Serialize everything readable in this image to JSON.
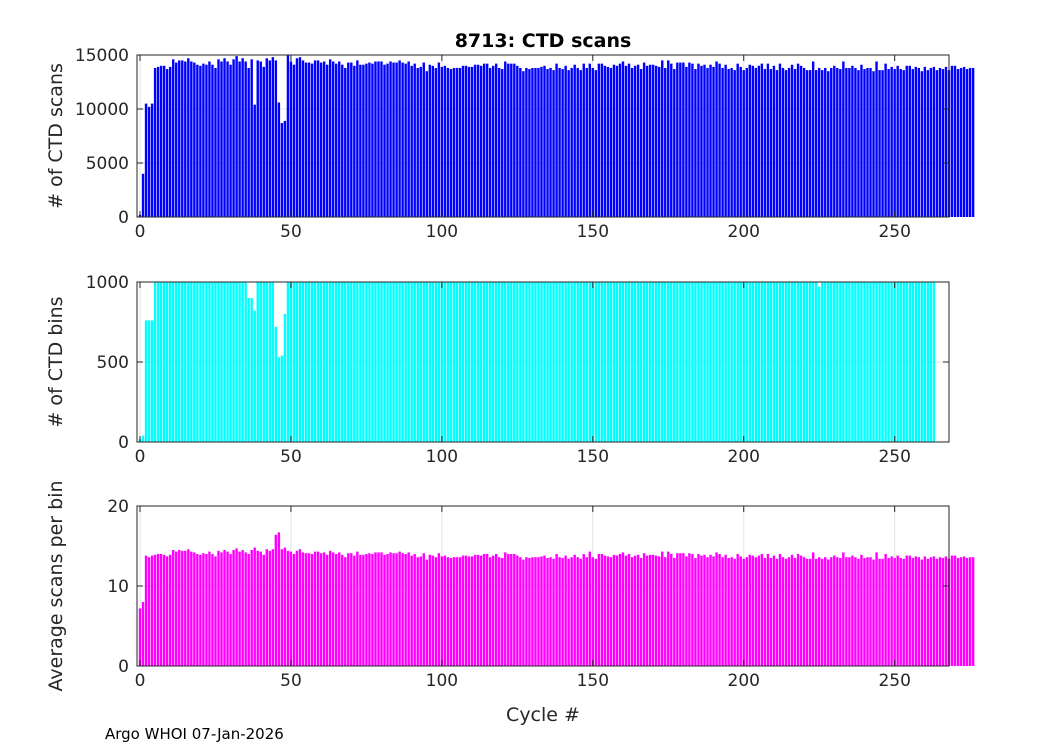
{
  "chart_data": [
    {
      "type": "bar",
      "panel": "top",
      "title": "8713: CTD scans",
      "xlabel": "",
      "ylabel": "# of CTD scans",
      "xlim": [
        -1,
        268
      ],
      "ylim": [
        0,
        15000
      ],
      "xticks": [
        0,
        50,
        100,
        150,
        200,
        250
      ],
      "yticks": [
        0,
        5000,
        10000,
        15000
      ],
      "color": "#0000ff",
      "grid": true,
      "x_start": 0,
      "values": [
        200,
        4000,
        10500,
        10200,
        10500,
        13800,
        13900,
        14000,
        14000,
        13700,
        13900,
        14600,
        14300,
        14500,
        14500,
        14400,
        14700,
        14400,
        14300,
        14100,
        14000,
        14200,
        14100,
        14400,
        14100,
        13800,
        14600,
        14400,
        14700,
        14400,
        14100,
        14600,
        14900,
        14400,
        14700,
        14400,
        13800,
        14600,
        10400,
        14500,
        14400,
        13900,
        14700,
        14500,
        14800,
        14500,
        10600,
        8700,
        8900,
        15000,
        14400,
        14100,
        14700,
        14800,
        14500,
        14300,
        14300,
        14200,
        14500,
        14500,
        14300,
        14400,
        14100,
        14600,
        14400,
        14200,
        14400,
        14100,
        13800,
        14300,
        14300,
        14000,
        14500,
        14100,
        14100,
        14200,
        14300,
        14200,
        14400,
        14400,
        14400,
        14100,
        14200,
        14400,
        14300,
        14300,
        14500,
        14300,
        14200,
        14400,
        14000,
        14200,
        13800,
        13900,
        14300,
        13500,
        14100,
        14000,
        13800,
        14300,
        13900,
        14000,
        13800,
        13700,
        13800,
        13800,
        13800,
        14000,
        14000,
        13900,
        13900,
        14100,
        14100,
        14000,
        14200,
        14200,
        13800,
        14000,
        14200,
        13800,
        13700,
        14400,
        14200,
        14200,
        14200,
        14000,
        13800,
        13500,
        13800,
        13700,
        13800,
        13800,
        13800,
        13900,
        14000,
        13700,
        13800,
        13600,
        14200,
        13800,
        13700,
        14000,
        13600,
        13800,
        14100,
        13800,
        13600,
        14200,
        13800,
        14200,
        13800,
        13600,
        14200,
        14200,
        14000,
        13900,
        13800,
        14100,
        14000,
        14200,
        14400,
        14000,
        14200,
        13800,
        14000,
        14100,
        13700,
        14300,
        14000,
        14100,
        14100,
        14000,
        13900,
        14500,
        13800,
        14500,
        14200,
        13700,
        14300,
        14300,
        14300,
        13900,
        14300,
        14200,
        13700,
        14200,
        14000,
        14100,
        13800,
        14100,
        13900,
        14400,
        14200,
        13800,
        14100,
        13700,
        13800,
        13600,
        14200,
        13900,
        13600,
        13800,
        14100,
        14000,
        13800,
        14000,
        14200,
        13700,
        14200,
        13700,
        14000,
        13600,
        14200,
        13800,
        13600,
        13800,
        14100,
        13700,
        14200,
        14000,
        13800,
        13600,
        13600,
        14400,
        13600,
        13800,
        13600,
        13800,
        13500,
        13800,
        14000,
        13800,
        13700,
        14400,
        13800,
        13800,
        14000,
        13800,
        13600,
        14100,
        13700,
        13800,
        13800,
        13500,
        14400,
        13600,
        13600,
        14200,
        13700,
        13900,
        13700,
        14000,
        13700,
        13600,
        14000,
        14000,
        13700,
        13900,
        13800,
        13500,
        13900,
        13600,
        13800,
        13900,
        13600,
        13800,
        13700,
        13900,
        13600,
        14000,
        14000,
        13700,
        13800,
        13900,
        13700,
        13800,
        13800
      ],
      "annotations": []
    },
    {
      "type": "bar",
      "panel": "middle",
      "title": "",
      "xlabel": "",
      "ylabel": "# of CTD bins",
      "xlim": [
        -1,
        268
      ],
      "ylim": [
        0,
        1000
      ],
      "xticks": [
        0,
        50,
        100,
        150,
        200,
        250
      ],
      "yticks": [
        0,
        500,
        1000
      ],
      "color": "#00ffff",
      "grid": true,
      "x_start": 0,
      "values": [
        20,
        40,
        760,
        760,
        760,
        1000,
        1000,
        1000,
        1000,
        1000,
        1000,
        1000,
        1000,
        1000,
        1000,
        1000,
        1000,
        1000,
        1000,
        1000,
        1000,
        1000,
        1000,
        1000,
        1000,
        1000,
        1000,
        1000,
        1000,
        1000,
        1000,
        1000,
        1000,
        1000,
        1000,
        1000,
        900,
        900,
        820,
        1000,
        1000,
        1000,
        1000,
        1000,
        1000,
        720,
        530,
        540,
        800,
        1000,
        1000,
        1000,
        1000,
        1000,
        1000,
        1000,
        1000,
        1000,
        1000,
        1000,
        1000,
        1000,
        1000,
        1000,
        1000,
        1000,
        1000,
        1000,
        1000,
        1000,
        1000,
        1000,
        1000,
        1000,
        1000,
        1000,
        1000,
        1000,
        1000,
        1000,
        1000,
        1000,
        1000,
        1000,
        1000,
        1000,
        1000,
        1000,
        1000,
        1000,
        1000,
        1000,
        1000,
        1000,
        1000,
        1000,
        1000,
        1000,
        1000,
        1000,
        1000,
        1000,
        1000,
        1000,
        1000,
        1000,
        1000,
        1000,
        1000,
        1000,
        1000,
        1000,
        1000,
        1000,
        1000,
        1000,
        1000,
        1000,
        1000,
        1000,
        1000,
        1000,
        1000,
        1000,
        1000,
        1000,
        1000,
        1000,
        1000,
        1000,
        1000,
        1000,
        1000,
        1000,
        1000,
        1000,
        1000,
        1000,
        1000,
        1000,
        1000,
        1000,
        1000,
        1000,
        1000,
        1000,
        1000,
        1000,
        1000,
        1000,
        1000,
        1000,
        1000,
        1000,
        1000,
        1000,
        1000,
        1000,
        1000,
        1000,
        1000,
        1000,
        1000,
        1000,
        1000,
        1000,
        1000,
        1000,
        1000,
        1000,
        1000,
        1000,
        1000,
        1000,
        1000,
        1000,
        1000,
        1000,
        1000,
        1000,
        1000,
        1000,
        1000,
        1000,
        1000,
        1000,
        1000,
        1000,
        1000,
        1000,
        1000,
        1000,
        1000,
        1000,
        1000,
        1000,
        1000,
        1000,
        1000,
        1000,
        1000,
        1000,
        1000,
        1000,
        1000,
        1000,
        1000,
        1000,
        1000,
        1000,
        1000,
        1000,
        1000,
        1000,
        1000,
        1000,
        1000,
        1000,
        1000,
        1000,
        1000,
        1000,
        1000,
        1000,
        1000,
        970,
        1000,
        1000,
        1000,
        1000,
        1000,
        1000,
        1000,
        1000,
        1000,
        1000,
        1000,
        1000,
        1000,
        1000,
        1000,
        1000,
        1000,
        1000,
        1000,
        1000,
        1000,
        1000,
        1000,
        1000,
        1000,
        1000,
        1000,
        1000,
        1000,
        1000,
        1000,
        1000,
        1000,
        1000,
        1000,
        1000,
        1000,
        1000
      ],
      "annotations": []
    },
    {
      "type": "bar",
      "panel": "bottom",
      "title": "",
      "xlabel": "Cycle #",
      "ylabel": "Average scans per bin",
      "xlim": [
        -1,
        268
      ],
      "ylim": [
        0,
        20
      ],
      "xticks": [
        0,
        50,
        100,
        150,
        200,
        250
      ],
      "yticks": [
        0,
        10,
        20
      ],
      "color": "#ff00ff",
      "grid": true,
      "x_start": 0,
      "values": [
        7.2,
        8.0,
        13.8,
        13.6,
        13.8,
        13.9,
        14.0,
        14.0,
        13.9,
        13.7,
        13.9,
        14.5,
        14.3,
        14.5,
        14.4,
        14.4,
        14.6,
        14.3,
        14.2,
        14.0,
        13.9,
        14.1,
        14.0,
        14.3,
        14.0,
        13.7,
        14.4,
        14.2,
        14.5,
        14.3,
        14.0,
        14.5,
        14.7,
        14.3,
        14.5,
        14.2,
        14.0,
        14.5,
        14.8,
        14.4,
        14.3,
        13.9,
        14.6,
        14.4,
        14.6,
        16.4,
        16.7,
        14.6,
        14.8,
        14.4,
        14.3,
        14.0,
        14.4,
        14.6,
        14.2,
        14.1,
        14.1,
        14.0,
        14.3,
        14.3,
        14.1,
        14.2,
        13.9,
        14.4,
        14.2,
        14.0,
        14.2,
        13.9,
        13.6,
        14.1,
        14.1,
        13.8,
        14.3,
        13.9,
        13.9,
        14.0,
        14.1,
        14.0,
        14.2,
        14.2,
        14.2,
        13.9,
        14.0,
        14.2,
        14.1,
        14.1,
        14.3,
        14.1,
        14.0,
        14.2,
        13.8,
        14.0,
        13.6,
        13.7,
        14.1,
        13.3,
        13.9,
        13.8,
        13.6,
        14.1,
        13.7,
        13.8,
        13.6,
        13.5,
        13.6,
        13.6,
        13.6,
        13.8,
        13.8,
        13.7,
        13.7,
        13.9,
        13.9,
        13.8,
        14.0,
        14.0,
        13.6,
        13.8,
        14.0,
        13.6,
        13.5,
        14.2,
        14.0,
        14.0,
        14.0,
        13.8,
        13.6,
        13.3,
        13.6,
        13.5,
        13.6,
        13.6,
        13.6,
        13.7,
        13.8,
        13.5,
        13.6,
        13.4,
        14.0,
        13.6,
        13.5,
        13.8,
        13.4,
        13.6,
        13.9,
        13.6,
        13.4,
        14.0,
        13.6,
        14.3,
        13.6,
        13.4,
        14.0,
        14.0,
        13.8,
        13.7,
        13.6,
        13.9,
        13.8,
        14.0,
        14.2,
        13.8,
        14.0,
        13.6,
        13.8,
        13.9,
        13.5,
        14.1,
        13.8,
        13.9,
        13.9,
        13.8,
        13.7,
        14.3,
        13.6,
        14.3,
        14.0,
        13.5,
        14.1,
        14.1,
        14.1,
        13.7,
        14.1,
        14.0,
        13.5,
        14.0,
        13.8,
        13.9,
        13.6,
        13.9,
        13.7,
        14.2,
        14.0,
        13.6,
        13.9,
        13.5,
        13.6,
        13.4,
        14.0,
        13.7,
        13.4,
        13.6,
        13.9,
        13.8,
        13.6,
        13.8,
        14.0,
        13.5,
        14.0,
        13.5,
        13.8,
        13.4,
        14.0,
        13.6,
        13.4,
        13.6,
        13.9,
        13.5,
        14.0,
        13.8,
        13.6,
        13.4,
        13.4,
        14.2,
        13.4,
        13.6,
        13.4,
        13.6,
        13.3,
        13.6,
        13.8,
        13.6,
        13.5,
        14.2,
        13.6,
        13.6,
        13.8,
        13.6,
        13.4,
        13.9,
        13.5,
        13.6,
        13.6,
        13.3,
        14.2,
        13.4,
        13.4,
        14.0,
        13.5,
        13.7,
        13.5,
        13.8,
        13.5,
        13.4,
        13.8,
        13.8,
        13.5,
        13.7,
        13.6,
        13.3,
        13.7,
        13.4,
        13.6,
        13.7,
        13.4,
        13.6,
        13.5,
        13.7,
        13.4,
        13.8,
        13.8,
        13.5,
        13.6,
        13.7,
        13.5,
        13.6,
        13.6
      ],
      "annotations": []
    }
  ],
  "footer": "Argo WHOI 07-Jan-2026"
}
